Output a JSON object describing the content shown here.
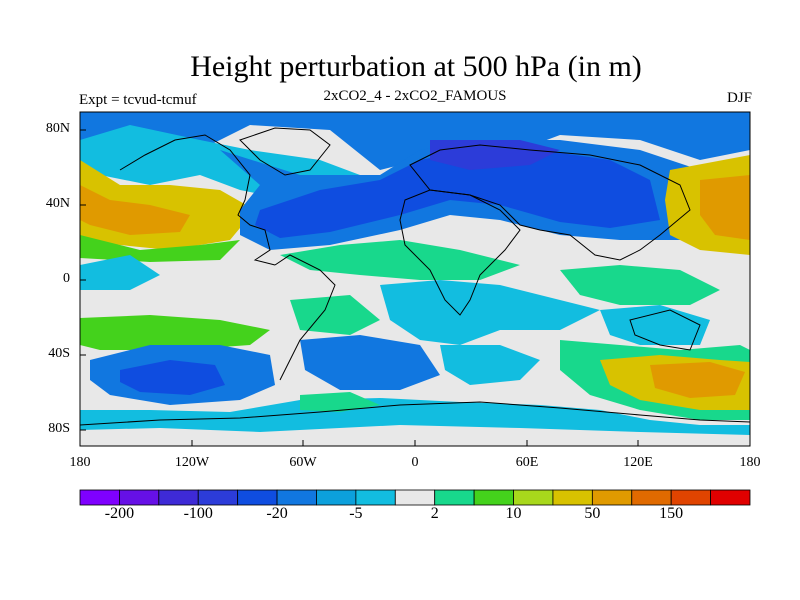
{
  "title": "Height perturbation at 500 hPa (in m)",
  "left_subtitle": "Expt = tcvud-tcmuf",
  "center_subtitle": "2xCO2_4 - 2xCO2_FAMOUS",
  "right_subtitle": "DJF",
  "lat_ticks": [
    "80N",
    "40N",
    "0",
    "40S",
    "80S"
  ],
  "lon_ticks": [
    "180",
    "120W",
    "60W",
    "0",
    "60E",
    "120E",
    "180"
  ],
  "colorbar": {
    "colors": [
      "#7f00ff",
      "#6610e6",
      "#3e2ad6",
      "#2c3cd9",
      "#0f4de0",
      "#1177e0",
      "#0ca0dc",
      "#12bde0",
      "#e8e8e8",
      "#18d88c",
      "#44d21c",
      "#a8d81c",
      "#d8c200",
      "#e09a00",
      "#e06a00",
      "#e04400",
      "#e00000"
    ],
    "labels": [
      "-200",
      "-100",
      "-20",
      "-5",
      "2",
      "10",
      "50",
      "150"
    ]
  },
  "regions": [
    {
      "name": "arctic-blue",
      "color": "#1177e0"
    },
    {
      "name": "eurasia-deep-blue",
      "color": "#0f4de0"
    },
    {
      "name": "north-atlantic-blue",
      "color": "#0f4de0"
    },
    {
      "name": "north-pacific-yellow",
      "color": "#d8c200"
    },
    {
      "name": "north-pacific-orange",
      "color": "#e09a00"
    },
    {
      "name": "east-asia-orange",
      "color": "#e09a00"
    },
    {
      "name": "south-pacific-blue",
      "color": "#1177e0"
    },
    {
      "name": "south-pacific-deep-blue",
      "color": "#0f4de0"
    },
    {
      "name": "south-indian-yellow",
      "color": "#d8c200"
    },
    {
      "name": "south-indian-orange",
      "color": "#e09a00"
    },
    {
      "name": "tropics-green",
      "color": "#18d88c"
    },
    {
      "name": "southern-ocean-cyan",
      "color": "#12bde0"
    }
  ]
}
